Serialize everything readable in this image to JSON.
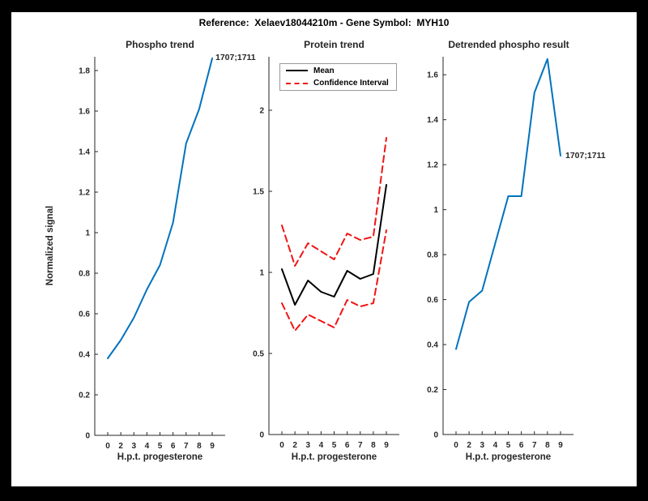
{
  "figure": {
    "title": "Reference:  Xelaev18044210m - Gene Symbol:  MYH10",
    "background": "#ffffff",
    "frame_color": "#000000",
    "accent_blue": "#0072BD",
    "accent_red": "#f01414",
    "axis_color": "#262626"
  },
  "chart_data": [
    {
      "type": "line",
      "title": "Phospho trend",
      "xlabel": "H.p.t. progesterone",
      "ylabel": "Normalized signal",
      "x_tick_labels": [
        "0",
        "2",
        "3",
        "4",
        "5",
        "6",
        "7",
        "8",
        "9"
      ],
      "ylim": [
        0,
        1.868
      ],
      "y_tick_values": [
        0,
        0.2,
        0.4,
        0.6,
        0.8,
        1,
        1.2,
        1.4,
        1.6,
        1.8
      ],
      "y_tick_labels": [
        "0",
        "0.2",
        "0.4",
        "0.6",
        "0.8",
        "1",
        "1.2",
        "1.4",
        "1.6",
        "1.8"
      ],
      "grid": false,
      "series": [
        {
          "name": "phospho-trend",
          "color": "#0072BD",
          "style": "solid",
          "width": 2,
          "values": [
            0.38,
            0.47,
            0.58,
            0.72,
            0.84,
            1.05,
            1.44,
            1.61,
            1.86
          ]
        }
      ],
      "annotation": {
        "text": "1707;1711",
        "x_label": "9",
        "y": 1.86
      }
    },
    {
      "type": "line",
      "title": "Protein trend",
      "xlabel": "H.p.t. progesterone",
      "ylabel": "",
      "x_tick_labels": [
        "0",
        "2",
        "3",
        "4",
        "5",
        "6",
        "7",
        "8",
        "9"
      ],
      "ylim": [
        0,
        2.33
      ],
      "y_tick_values": [
        0,
        0.5,
        1,
        1.5,
        2
      ],
      "y_tick_labels": [
        "0",
        "0.5",
        "1",
        "1.5",
        "2"
      ],
      "grid": false,
      "legend": {
        "position": "northwest",
        "entries": [
          {
            "label": "Mean",
            "style": "solid",
            "color": "#000000"
          },
          {
            "label": "Confidence Interval",
            "style": "dashed",
            "color": "#f01414"
          }
        ]
      },
      "series": [
        {
          "name": "ci-upper",
          "color": "#f01414",
          "style": "dashed",
          "width": 2,
          "values": [
            1.29,
            1.04,
            1.18,
            1.13,
            1.08,
            1.24,
            1.2,
            1.22,
            1.83
          ]
        },
        {
          "name": "ci-lower",
          "color": "#f01414",
          "style": "dashed",
          "width": 2,
          "values": [
            0.81,
            0.64,
            0.74,
            0.7,
            0.66,
            0.83,
            0.79,
            0.81,
            1.26
          ]
        },
        {
          "name": "mean",
          "color": "#000000",
          "style": "solid",
          "width": 2,
          "values": [
            1.02,
            0.8,
            0.95,
            0.88,
            0.85,
            1.01,
            0.96,
            0.99,
            1.54
          ]
        }
      ]
    },
    {
      "type": "line",
      "title": "Detrended phospho result",
      "xlabel": "H.p.t. progesterone",
      "ylabel": "",
      "x_tick_labels": [
        "0",
        "2",
        "3",
        "4",
        "5",
        "6",
        "7",
        "8",
        "9"
      ],
      "ylim": [
        0,
        1.68
      ],
      "y_tick_values": [
        0,
        0.2,
        0.4,
        0.6,
        0.8,
        1,
        1.2,
        1.4,
        1.6
      ],
      "y_tick_labels": [
        "0",
        "0.2",
        "0.4",
        "0.6",
        "0.8",
        "1",
        "1.2",
        "1.4",
        "1.6"
      ],
      "grid": false,
      "series": [
        {
          "name": "detrended-phospho",
          "color": "#0072BD",
          "style": "solid",
          "width": 2,
          "values": [
            0.38,
            0.59,
            0.64,
            0.85,
            1.06,
            1.06,
            1.52,
            1.67,
            1.24
          ]
        }
      ],
      "annotation": {
        "text": "1707;1711",
        "x_label": "9",
        "y": 1.24
      }
    }
  ]
}
